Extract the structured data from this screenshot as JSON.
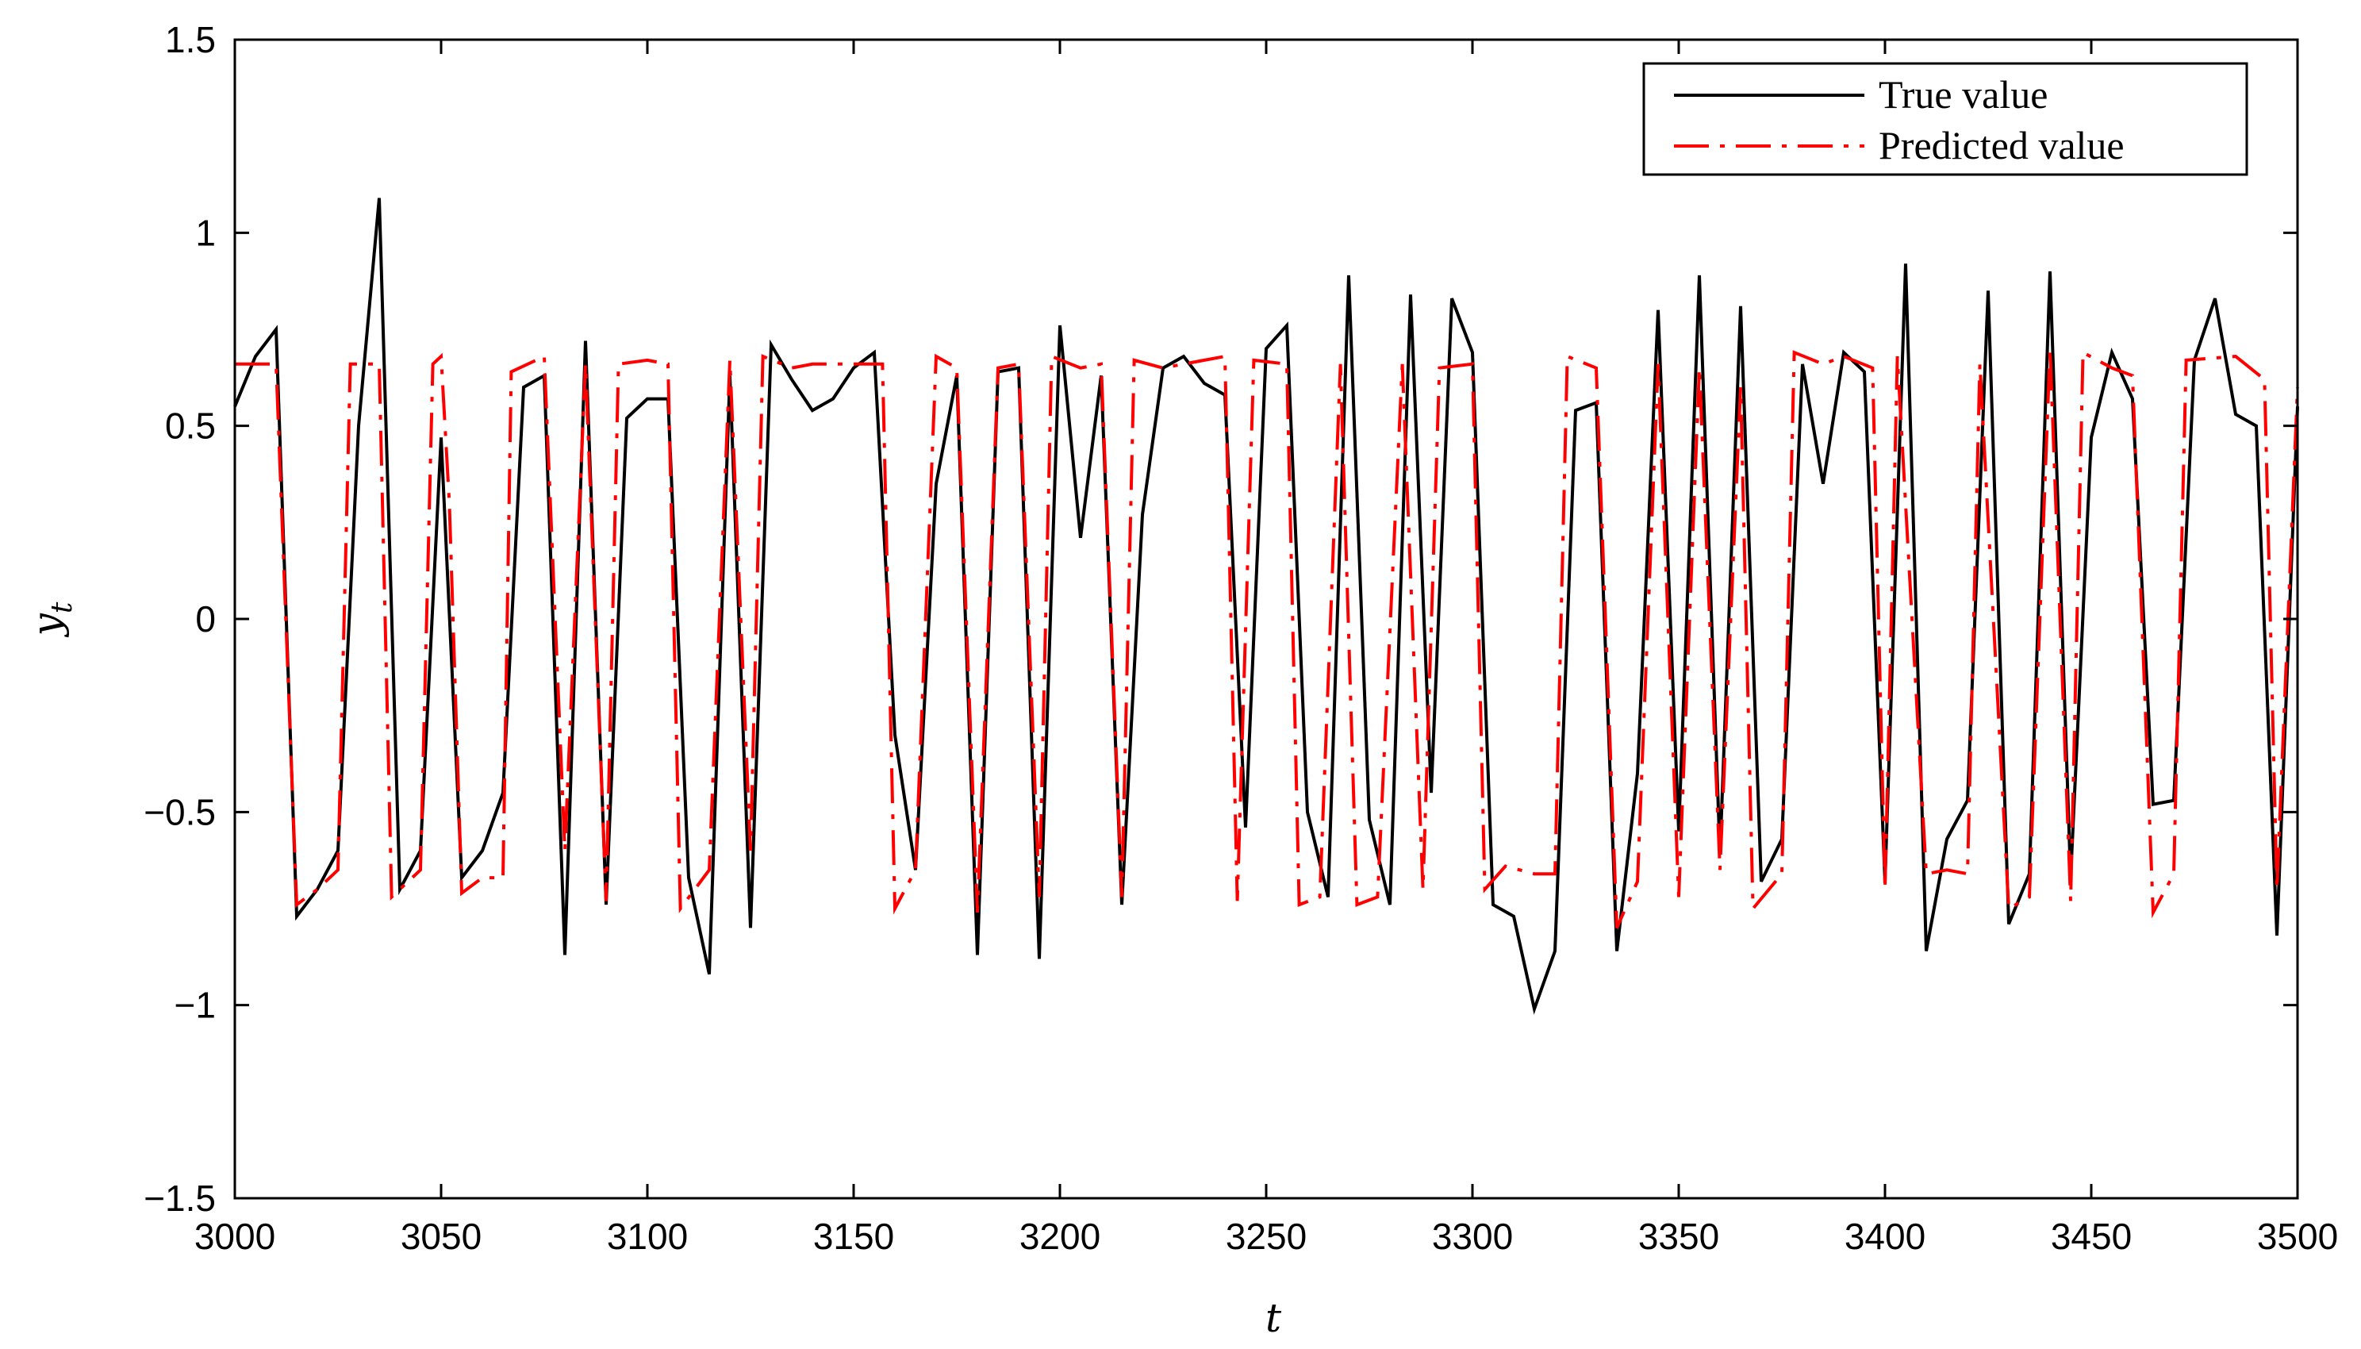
{
  "chart_data": {
    "type": "line",
    "title": "",
    "xlabel": "t",
    "ylabel": "y",
    "ylabel_subscript": "t",
    "xlim": [
      3000,
      3500
    ],
    "ylim": [
      -1.5,
      1.5
    ],
    "xticks": [
      3000,
      3050,
      3100,
      3150,
      3200,
      3250,
      3300,
      3350,
      3400,
      3450,
      3500
    ],
    "yticks": [
      -1.5,
      -1,
      -0.5,
      0,
      0.5,
      1,
      1.5
    ],
    "ytick_labels": [
      "−1.5",
      "−1",
      "−0.5",
      "0",
      "0.5",
      "1",
      "1.5"
    ],
    "grid": false,
    "legend_position": "top-right",
    "series": [
      {
        "name": "True value",
        "color": "#000000",
        "style": "solid",
        "points": [
          [
            3000,
            0.55
          ],
          [
            3005,
            0.68
          ],
          [
            3010,
            0.75
          ],
          [
            3015,
            -0.77
          ],
          [
            3020,
            -0.7
          ],
          [
            3025,
            -0.6
          ],
          [
            3030,
            0.5
          ],
          [
            3035,
            1.09
          ],
          [
            3040,
            -0.7
          ],
          [
            3045,
            -0.6
          ],
          [
            3050,
            0.47
          ],
          [
            3055,
            -0.67
          ],
          [
            3060,
            -0.6
          ],
          [
            3065,
            -0.45
          ],
          [
            3070,
            0.6
          ],
          [
            3075,
            0.63
          ],
          [
            3080,
            -0.87
          ],
          [
            3085,
            0.72
          ],
          [
            3090,
            -0.74
          ],
          [
            3095,
            0.52
          ],
          [
            3100,
            0.57
          ],
          [
            3105,
            0.57
          ],
          [
            3110,
            -0.67
          ],
          [
            3115,
            -0.92
          ],
          [
            3120,
            0.63
          ],
          [
            3125,
            -0.8
          ],
          [
            3130,
            0.71
          ],
          [
            3135,
            0.62
          ],
          [
            3140,
            0.54
          ],
          [
            3145,
            0.57
          ],
          [
            3150,
            0.65
          ],
          [
            3155,
            0.69
          ],
          [
            3160,
            -0.3
          ],
          [
            3165,
            -0.65
          ],
          [
            3170,
            0.35
          ],
          [
            3175,
            0.63
          ],
          [
            3180,
            -0.87
          ],
          [
            3185,
            0.64
          ],
          [
            3190,
            0.65
          ],
          [
            3195,
            -0.88
          ],
          [
            3200,
            0.76
          ],
          [
            3205,
            0.21
          ],
          [
            3210,
            0.63
          ],
          [
            3215,
            -0.74
          ],
          [
            3220,
            0.27
          ],
          [
            3225,
            0.65
          ],
          [
            3230,
            0.68
          ],
          [
            3235,
            0.61
          ],
          [
            3240,
            0.58
          ],
          [
            3245,
            -0.54
          ],
          [
            3250,
            0.7
          ],
          [
            3255,
            0.76
          ],
          [
            3260,
            -0.5
          ],
          [
            3265,
            -0.72
          ],
          [
            3270,
            0.89
          ],
          [
            3275,
            -0.52
          ],
          [
            3280,
            -0.74
          ],
          [
            3285,
            0.84
          ],
          [
            3290,
            -0.45
          ],
          [
            3295,
            0.83
          ],
          [
            3300,
            0.69
          ],
          [
            3305,
            -0.74
          ],
          [
            3310,
            -0.77
          ],
          [
            3315,
            -1.01
          ],
          [
            3320,
            -0.86
          ],
          [
            3325,
            0.54
          ],
          [
            3330,
            0.56
          ],
          [
            3335,
            -0.86
          ],
          [
            3340,
            -0.4
          ],
          [
            3345,
            0.8
          ],
          [
            3350,
            -0.55
          ],
          [
            3355,
            0.89
          ],
          [
            3360,
            -0.61
          ],
          [
            3365,
            0.81
          ],
          [
            3370,
            -0.68
          ],
          [
            3375,
            -0.57
          ],
          [
            3380,
            0.66
          ],
          [
            3385,
            0.35
          ],
          [
            3390,
            0.69
          ],
          [
            3395,
            0.64
          ],
          [
            3400,
            -0.68
          ],
          [
            3405,
            0.92
          ],
          [
            3410,
            -0.86
          ],
          [
            3415,
            -0.57
          ],
          [
            3420,
            -0.47
          ],
          [
            3425,
            0.85
          ],
          [
            3430,
            -0.79
          ],
          [
            3435,
            -0.66
          ],
          [
            3440,
            0.9
          ],
          [
            3445,
            -0.67
          ],
          [
            3450,
            0.47
          ],
          [
            3455,
            0.69
          ],
          [
            3460,
            0.57
          ],
          [
            3465,
            -0.48
          ],
          [
            3470,
            -0.47
          ],
          [
            3475,
            0.67
          ],
          [
            3480,
            0.83
          ],
          [
            3485,
            0.53
          ],
          [
            3490,
            0.5
          ],
          [
            3495,
            -0.82
          ],
          [
            3500,
            0.55
          ]
        ]
      },
      {
        "name": "Predicted value",
        "color": "#ff0000",
        "style": "dash-dot",
        "points": [
          [
            3000,
            0.66
          ],
          [
            3010,
            0.66
          ],
          [
            3015,
            -0.74
          ],
          [
            3020,
            -0.7
          ],
          [
            3025,
            -0.65
          ],
          [
            3028,
            0.66
          ],
          [
            3035,
            0.66
          ],
          [
            3038,
            -0.72
          ],
          [
            3045,
            -0.65
          ],
          [
            3048,
            0.66
          ],
          [
            3050,
            0.68
          ],
          [
            3052,
            0.3
          ],
          [
            3055,
            -0.71
          ],
          [
            3060,
            -0.67
          ],
          [
            3065,
            -0.67
          ],
          [
            3067,
            0.64
          ],
          [
            3075,
            0.68
          ],
          [
            3080,
            -0.6
          ],
          [
            3085,
            0.66
          ],
          [
            3090,
            -0.73
          ],
          [
            3093,
            0.66
          ],
          [
            3100,
            0.67
          ],
          [
            3105,
            0.66
          ],
          [
            3108,
            -0.75
          ],
          [
            3115,
            -0.65
          ],
          [
            3120,
            0.67
          ],
          [
            3125,
            -0.6
          ],
          [
            3128,
            0.68
          ],
          [
            3135,
            0.65
          ],
          [
            3140,
            0.66
          ],
          [
            3150,
            0.66
          ],
          [
            3157,
            0.66
          ],
          [
            3160,
            -0.75
          ],
          [
            3165,
            -0.65
          ],
          [
            3170,
            0.68
          ],
          [
            3175,
            0.65
          ],
          [
            3180,
            -0.76
          ],
          [
            3185,
            0.65
          ],
          [
            3190,
            0.66
          ],
          [
            3195,
            -0.72
          ],
          [
            3198,
            0.68
          ],
          [
            3205,
            0.65
          ],
          [
            3210,
            0.66
          ],
          [
            3215,
            -0.72
          ],
          [
            3218,
            0.67
          ],
          [
            3225,
            0.65
          ],
          [
            3230,
            0.66
          ],
          [
            3235,
            0.67
          ],
          [
            3240,
            0.68
          ],
          [
            3243,
            -0.73
          ],
          [
            3247,
            0.67
          ],
          [
            3255,
            0.66
          ],
          [
            3258,
            -0.74
          ],
          [
            3263,
            -0.72
          ],
          [
            3268,
            0.66
          ],
          [
            3272,
            -0.74
          ],
          [
            3277,
            -0.72
          ],
          [
            3283,
            0.66
          ],
          [
            3288,
            -0.7
          ],
          [
            3292,
            0.65
          ],
          [
            3300,
            0.66
          ],
          [
            3303,
            -0.7
          ],
          [
            3308,
            -0.64
          ],
          [
            3315,
            -0.66
          ],
          [
            3320,
            -0.66
          ],
          [
            3323,
            0.68
          ],
          [
            3330,
            0.65
          ],
          [
            3335,
            -0.8
          ],
          [
            3340,
            -0.68
          ],
          [
            3345,
            0.66
          ],
          [
            3350,
            -0.72
          ],
          [
            3355,
            0.65
          ],
          [
            3360,
            -0.65
          ],
          [
            3365,
            0.6
          ],
          [
            3368,
            -0.75
          ],
          [
            3375,
            -0.66
          ],
          [
            3378,
            0.69
          ],
          [
            3385,
            0.66
          ],
          [
            3390,
            0.68
          ],
          [
            3397,
            0.65
          ],
          [
            3400,
            -0.7
          ],
          [
            3403,
            0.68
          ],
          [
            3410,
            -0.66
          ],
          [
            3415,
            -0.65
          ],
          [
            3420,
            -0.66
          ],
          [
            3423,
            0.66
          ],
          [
            3430,
            -0.75
          ],
          [
            3435,
            -0.72
          ],
          [
            3440,
            0.7
          ],
          [
            3445,
            -0.73
          ],
          [
            3448,
            0.69
          ],
          [
            3455,
            0.65
          ],
          [
            3460,
            0.63
          ],
          [
            3465,
            -0.76
          ],
          [
            3470,
            -0.66
          ],
          [
            3473,
            0.67
          ],
          [
            3485,
            0.68
          ],
          [
            3492,
            0.62
          ],
          [
            3495,
            -0.7
          ],
          [
            3500,
            0.6
          ]
        ]
      }
    ]
  }
}
